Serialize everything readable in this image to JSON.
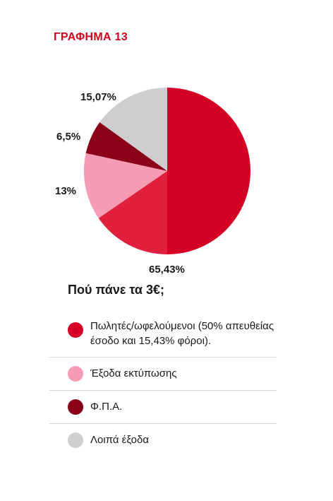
{
  "header": {
    "chart_label": "ΓΡΑΦΗΜΑ 13",
    "chart_label_color": "#d0021b"
  },
  "question": "Πού πάνε τα 3€;",
  "legend": {
    "items": [
      {
        "label": "Πωλητές/ωφελούμενοι (50% απευθείας έσοδο και 15,43% φόροι).",
        "color": "#d50025"
      },
      {
        "label": "Έξοδα εκτύπωσης",
        "color": "#f59bb4"
      },
      {
        "label": "Φ.Π.Α.",
        "color": "#8a0019"
      },
      {
        "label": "Λοιπά έξοδα",
        "color": "#cfcdd0"
      }
    ]
  },
  "chart_data": {
    "type": "pie",
    "slices": [
      {
        "label": "65,43%",
        "value": 50.0,
        "color": "#d50025"
      },
      {
        "label": "",
        "value": 15.43,
        "color": "#e01f3d"
      },
      {
        "label": "13%",
        "value": 13,
        "color": "#f59bb4"
      },
      {
        "label": "6,5%",
        "value": 6.5,
        "color": "#8a0019"
      },
      {
        "label": "15,07%",
        "value": 15.07,
        "color": "#cfcdd0"
      }
    ]
  }
}
